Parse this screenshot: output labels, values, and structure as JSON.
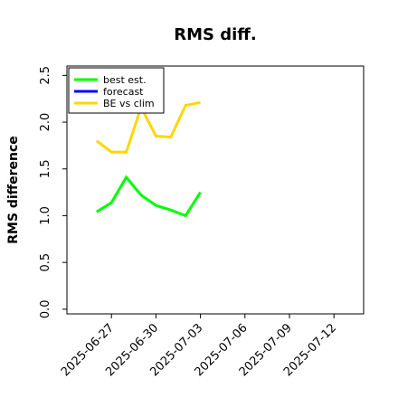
{
  "chart_data": {
    "type": "line",
    "title": "RMS diff.",
    "xlabel": "",
    "ylabel": "RMS difference",
    "x_domain": [
      "2025-06-24",
      "2025-07-14"
    ],
    "ylim": [
      -0.05,
      2.6
    ],
    "yticks": [
      "0.0",
      "0.5",
      "1.0",
      "1.5",
      "2.0",
      "2.5"
    ],
    "xticks": [
      "2025-06-27",
      "2025-06-30",
      "2025-07-03",
      "2025-07-06",
      "2025-07-09",
      "2025-07-12"
    ],
    "highlight_tick": "2025-07-03",
    "highlight_color": "#228B22",
    "grid": false,
    "legend_position": "top-left",
    "series": [
      {
        "name": "best est.",
        "color": "#00ff00",
        "points": [
          {
            "x": "2025-06-26",
            "y": 1.04
          },
          {
            "x": "2025-06-27",
            "y": 1.14
          },
          {
            "x": "2025-06-28",
            "y": 1.41
          },
          {
            "x": "2025-06-29",
            "y": 1.22
          },
          {
            "x": "2025-06-30",
            "y": 1.11
          },
          {
            "x": "2025-07-01",
            "y": 1.06
          },
          {
            "x": "2025-07-02",
            "y": 1.0
          },
          {
            "x": "2025-07-03",
            "y": 1.25
          }
        ]
      },
      {
        "name": "forecast",
        "color": "#0000ff",
        "points": []
      },
      {
        "name": "BE vs clim",
        "color": "#ffd700",
        "points": [
          {
            "x": "2025-06-26",
            "y": 1.8
          },
          {
            "x": "2025-06-27",
            "y": 1.68
          },
          {
            "x": "2025-06-28",
            "y": 1.68
          },
          {
            "x": "2025-06-29",
            "y": 2.16
          },
          {
            "x": "2025-06-30",
            "y": 1.85
          },
          {
            "x": "2025-07-01",
            "y": 1.84
          },
          {
            "x": "2025-07-02",
            "y": 2.18
          },
          {
            "x": "2025-07-03",
            "y": 2.21
          }
        ]
      }
    ]
  }
}
